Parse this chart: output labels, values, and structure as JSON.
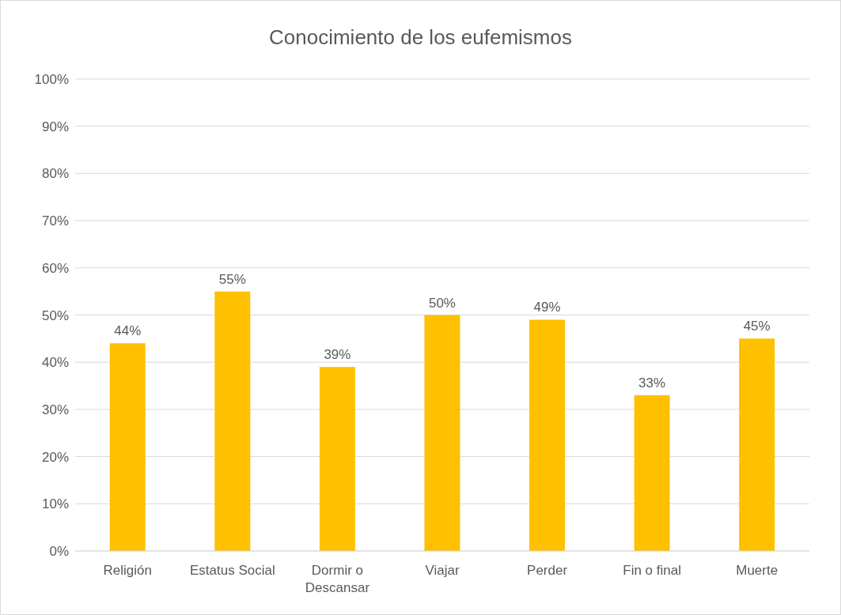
{
  "chart_data": {
    "type": "bar",
    "title": "Conocimiento de los eufemismos",
    "categories": [
      "Religión",
      "Estatus Social",
      "Dormir o Descansar",
      "Viajar",
      "Perder",
      "Fin o final",
      "Muerte"
    ],
    "values": [
      44,
      55,
      39,
      50,
      49,
      33,
      45
    ],
    "value_labels": [
      "44%",
      "55%",
      "39%",
      "50%",
      "49%",
      "33%",
      "45%"
    ],
    "color": "#ffc000",
    "ylim": [
      0,
      100
    ],
    "yticks": [
      {
        "value": 0,
        "label": "0%"
      },
      {
        "value": 10,
        "label": "10%"
      },
      {
        "value": 20,
        "label": "20%"
      },
      {
        "value": 30,
        "label": "30%"
      },
      {
        "value": 40,
        "label": "40%"
      },
      {
        "value": 50,
        "label": "50%"
      },
      {
        "value": 60,
        "label": "60%"
      },
      {
        "value": 70,
        "label": "70%"
      },
      {
        "value": 80,
        "label": "80%"
      },
      {
        "value": 90,
        "label": "90%"
      },
      {
        "value": 100,
        "label": "100%"
      }
    ],
    "grid": "y"
  }
}
